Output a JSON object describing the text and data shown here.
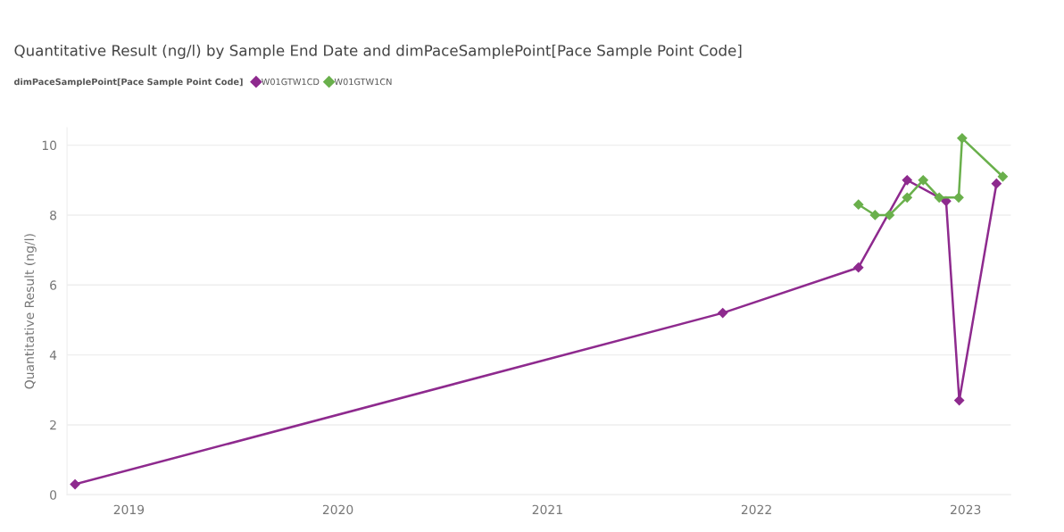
{
  "chart_data": {
    "type": "line",
    "title": "Quantitative Result (ng/l) by Sample End Date and dimPaceSamplePoint[Pace Sample Point Code]",
    "ylabel": "Quantitative Result (ng/l)",
    "legend_title": "dimPaceSamplePoint[Pace Sample Point Code]",
    "legend": "top left",
    "grid": "y",
    "marker": "diamond",
    "line_style": "solid",
    "xlim": [
      "2018-09-15",
      "2023-03-21"
    ],
    "xticks": [
      {
        "value": "2019",
        "label": "2019"
      },
      {
        "value": "2020",
        "label": "2020"
      },
      {
        "value": "2021",
        "label": "2021"
      },
      {
        "value": "2022",
        "label": "2022"
      },
      {
        "value": "2023",
        "label": "2023"
      }
    ],
    "ylim": [
      0,
      10.5
    ],
    "yticks": [
      0,
      2,
      4,
      6,
      8,
      10
    ],
    "series": [
      {
        "name": "W01GTW1CD",
        "color": "#8e2a8e",
        "x": [
          "2018-09-29",
          "2021-11-03",
          "2022-06-28",
          "2022-09-21",
          "2022-11-28",
          "2022-12-21",
          "2023-02-24"
        ],
        "values": [
          0.3,
          5.2,
          6.5,
          9.0,
          8.4,
          2.7,
          8.9
        ]
      },
      {
        "name": "W01GTW1CN",
        "color": "#6ab04c",
        "x": [
          "2022-06-28",
          "2022-07-27",
          "2022-08-21",
          "2022-09-21",
          "2022-10-19",
          "2022-11-16",
          "2022-12-20",
          "2022-12-26",
          "2023-03-07"
        ],
        "values": [
          8.3,
          8.0,
          8.0,
          8.5,
          9.0,
          8.5,
          8.5,
          10.2,
          9.1
        ]
      }
    ]
  }
}
